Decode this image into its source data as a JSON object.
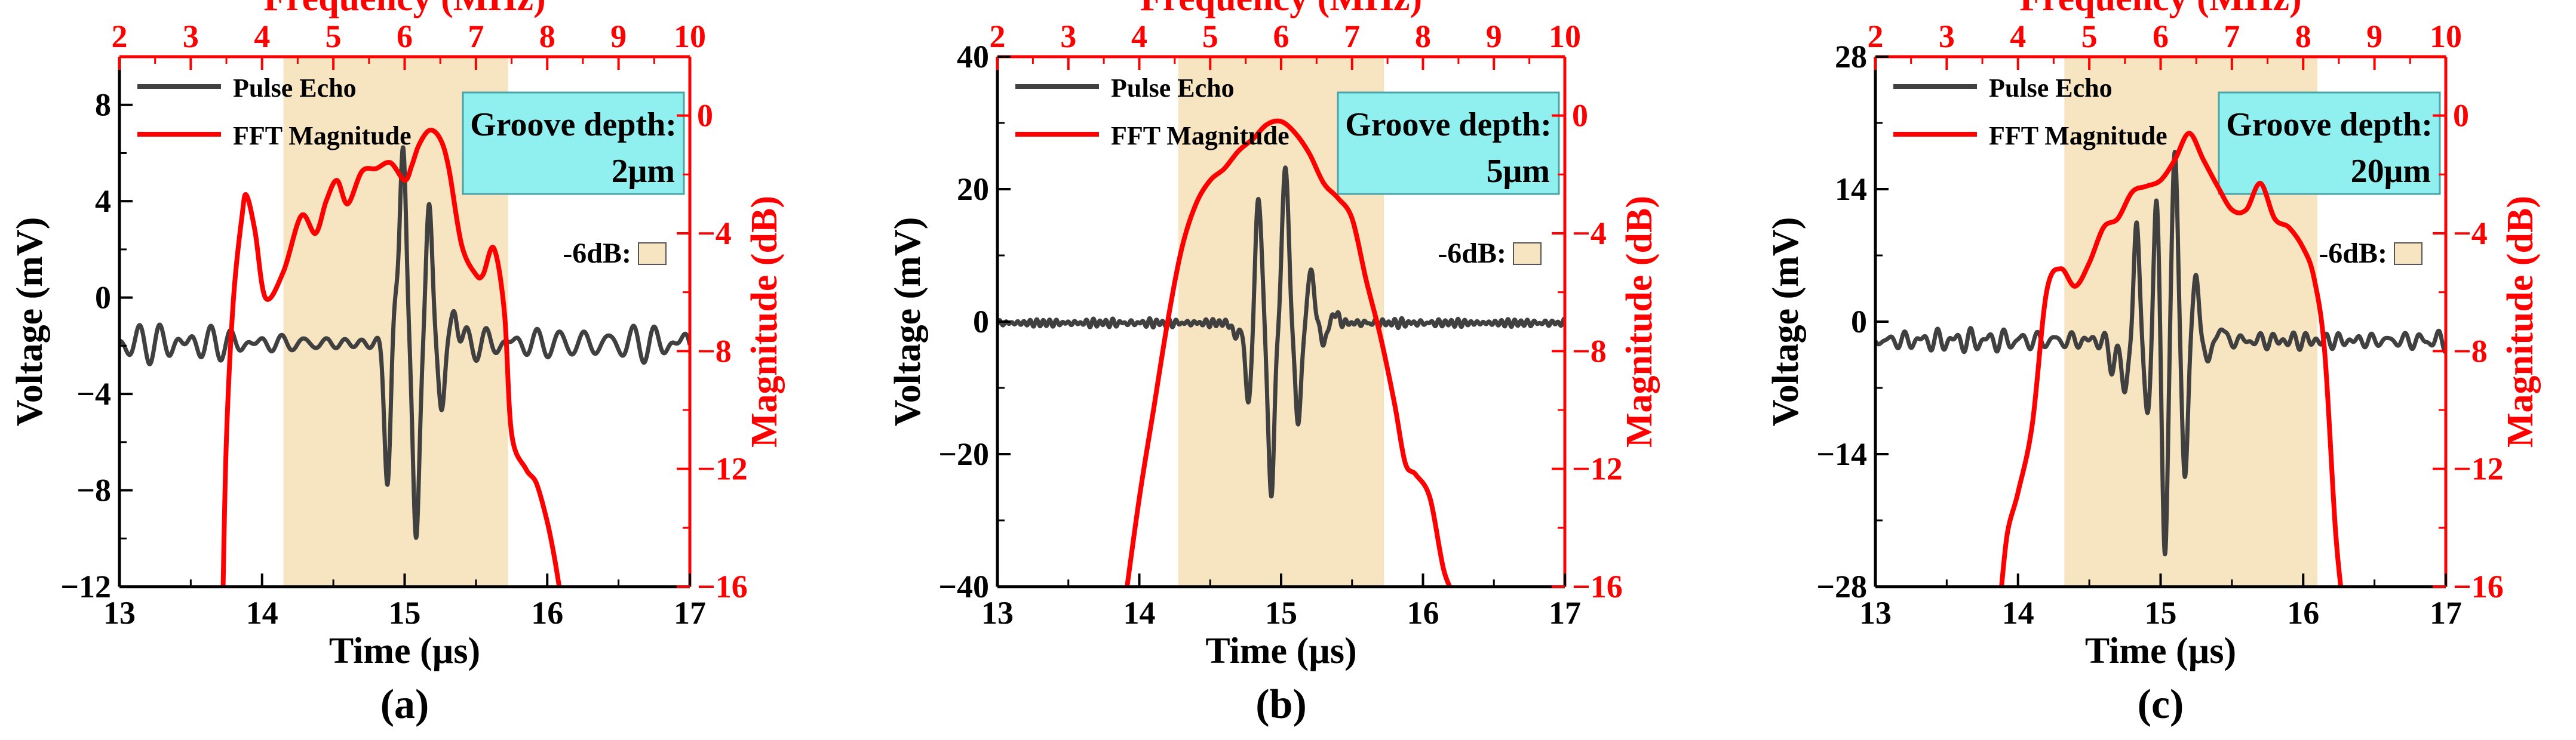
{
  "chart_data": [
    {
      "type": "line",
      "panel_label": "(a)",
      "top_axis": {
        "label": "Frequency (MHz)",
        "range": [
          2,
          10
        ],
        "ticks": [
          "2",
          "3",
          "4",
          "5",
          "6",
          "7",
          "8",
          "9",
          "10"
        ],
        "color": "#ff0000"
      },
      "bottom_axis": {
        "label": "Time (µs)",
        "range": [
          13,
          17
        ],
        "ticks": [
          "13",
          "14",
          "15",
          "16",
          "17"
        ]
      },
      "left_axis": {
        "label": "Voltage (mV)",
        "range": [
          -12,
          10
        ],
        "ticks": [
          -12,
          -8,
          -4,
          0,
          4,
          8
        ],
        "tick_labels": [
          "−12",
          "−8",
          "−4",
          "0",
          "4",
          "8"
        ]
      },
      "right_axis": {
        "label": "Magnitude (dB)",
        "range": [
          -16,
          2
        ],
        "ticks": [
          -16,
          -12,
          -8,
          -4,
          0
        ],
        "tick_labels": [
          "−16",
          "−12",
          "−8",
          "−4",
          "0"
        ],
        "color": "#ff0000"
      },
      "band_6db_freq": [
        4.3,
        7.45
      ],
      "band_label": "-6dB:",
      "groove_title": "Groove depth:",
      "groove_value": "2μm",
      "series": [
        {
          "name": "Pulse Echo",
          "axis": "time_voltage",
          "color": "#404040",
          "baseline": -1.9,
          "noise": 1.0,
          "noise_period": 0.13,
          "seed": 11,
          "pulse": [
            {
              "t": 14.93,
              "a": 1.4
            },
            {
              "t": 14.88,
              "a": -5.6
            },
            {
              "t": 14.99,
              "a": 8.5
            },
            {
              "t": 15.08,
              "a": -8.6
            },
            {
              "t": 15.17,
              "a": 5.8
            },
            {
              "t": 15.26,
              "a": -2.6
            },
            {
              "t": 15.35,
              "a": 1.6
            }
          ],
          "pulse_sigma": 0.022
        },
        {
          "name": "FFT Magnitude",
          "axis": "freq_db",
          "color": "#ff0000",
          "x": [
            3.45,
            3.5,
            3.6,
            3.72,
            3.78,
            3.9,
            4.05,
            4.3,
            4.55,
            4.75,
            4.9,
            5.05,
            5.2,
            5.4,
            5.6,
            5.8,
            6.0,
            6.1,
            6.2,
            6.35,
            6.5,
            6.62,
            6.8,
            7.0,
            7.1,
            7.25,
            7.4,
            7.5,
            7.7,
            7.85,
            8.0,
            8.1,
            8.2
          ],
          "y": [
            -16.5,
            -11,
            -6.2,
            -3.4,
            -2.7,
            -3.9,
            -6.2,
            -5.3,
            -3.4,
            -4.0,
            -2.9,
            -2.2,
            -3.0,
            -1.9,
            -1.8,
            -1.6,
            -2.2,
            -1.7,
            -1.0,
            -0.5,
            -0.8,
            -1.8,
            -4.4,
            -5.4,
            -5.4,
            -4.5,
            -6.7,
            -10.8,
            -12.0,
            -12.5,
            -13.8,
            -15.0,
            -16.5
          ]
        }
      ]
    },
    {
      "type": "line",
      "panel_label": "(b)",
      "top_axis": {
        "label": "Frequency (MHz)",
        "range": [
          2,
          10
        ],
        "ticks": [
          "2",
          "3",
          "4",
          "5",
          "6",
          "7",
          "8",
          "9",
          "10"
        ],
        "color": "#ff0000"
      },
      "bottom_axis": {
        "label": "Time (µs)",
        "range": [
          13,
          17
        ],
        "ticks": [
          "13",
          "14",
          "15",
          "16",
          "17"
        ]
      },
      "left_axis": {
        "label": "Voltage (mV)",
        "range": [
          -40,
          40
        ],
        "ticks": [
          -40,
          -20,
          0,
          20,
          40
        ],
        "tick_labels": [
          "−40",
          "−20",
          "0",
          "20",
          "40"
        ]
      },
      "right_axis": {
        "label": "Magnitude (dB)",
        "range": [
          -16,
          2
        ],
        "ticks": [
          -16,
          -12,
          -8,
          -4,
          0
        ],
        "tick_labels": [
          "−16",
          "−12",
          "−8",
          "−4",
          "0"
        ],
        "color": "#ff0000"
      },
      "band_6db_freq": [
        4.55,
        7.45
      ],
      "band_label": "-6dB:",
      "groove_title": "Groove depth:",
      "groove_value": "5μm",
      "series": [
        {
          "name": "Pulse Echo",
          "axis": "time_voltage",
          "color": "#404040",
          "baseline": -0.2,
          "noise": 0.9,
          "noise_period": 0.05,
          "seed": 23,
          "pulse": [
            {
              "t": 14.68,
              "a": -2.0
            },
            {
              "t": 14.77,
              "a": -12.0
            },
            {
              "t": 14.84,
              "a": 19.0
            },
            {
              "t": 14.93,
              "a": -26.0
            },
            {
              "t": 15.03,
              "a": 24.0
            },
            {
              "t": 15.12,
              "a": -15.0
            },
            {
              "t": 15.21,
              "a": 8.0
            },
            {
              "t": 15.3,
              "a": -3.0
            },
            {
              "t": 15.38,
              "a": 1.5
            }
          ],
          "pulse_sigma": 0.022
        },
        {
          "name": "FFT Magnitude",
          "axis": "freq_db",
          "color": "#ff0000",
          "x": [
            3.8,
            4.0,
            4.2,
            4.4,
            4.6,
            4.8,
            5.0,
            5.2,
            5.4,
            5.6,
            5.8,
            6.0,
            6.2,
            6.4,
            6.6,
            6.8,
            7.0,
            7.2,
            7.4,
            7.6,
            7.75,
            7.9,
            8.1,
            8.3,
            8.5
          ],
          "y": [
            -16.5,
            -13.0,
            -10.0,
            -7.0,
            -4.5,
            -3.0,
            -2.2,
            -1.8,
            -1.2,
            -0.8,
            -0.3,
            -0.2,
            -0.6,
            -1.3,
            -2.3,
            -2.8,
            -3.5,
            -5.6,
            -7.5,
            -9.8,
            -11.8,
            -12.2,
            -13.0,
            -15.5,
            -16.5
          ]
        }
      ]
    },
    {
      "type": "line",
      "panel_label": "(c)",
      "top_axis": {
        "label": "Frequency (MHz)",
        "range": [
          2,
          10
        ],
        "ticks": [
          "2",
          "3",
          "4",
          "5",
          "6",
          "7",
          "8",
          "9",
          "10"
        ],
        "color": "#ff0000"
      },
      "bottom_axis": {
        "label": "Time (µs)",
        "range": [
          13,
          17
        ],
        "ticks": [
          "13",
          "14",
          "15",
          "16",
          "17"
        ]
      },
      "left_axis": {
        "label": "Voltage (mV)",
        "range": [
          -28,
          28
        ],
        "ticks": [
          -28,
          -14,
          0,
          14,
          28
        ],
        "tick_labels": [
          "−28",
          "−14",
          "0",
          "14",
          "28"
        ]
      },
      "right_axis": {
        "label": "Magnitude (dB)",
        "range": [
          -16,
          2
        ],
        "ticks": [
          -16,
          -12,
          -8,
          -4,
          0
        ],
        "tick_labels": [
          "−16",
          "−12",
          "−8",
          "−4",
          "0"
        ],
        "color": "#ff0000"
      },
      "band_6db_freq": [
        4.65,
        8.2
      ],
      "band_label": "-6dB:",
      "groove_title": "Groove depth:",
      "groove_value": "20μm",
      "series": [
        {
          "name": "Pulse Echo",
          "axis": "time_voltage",
          "color": "#404040",
          "baseline": -2.0,
          "noise": 1.2,
          "noise_period": 0.1,
          "seed": 37,
          "pulse": [
            {
              "t": 14.66,
              "a": -3.0
            },
            {
              "t": 14.75,
              "a": -6.0
            },
            {
              "t": 14.83,
              "a": 12.0
            },
            {
              "t": 14.91,
              "a": -8.0
            },
            {
              "t": 14.97,
              "a": 15.0
            },
            {
              "t": 15.03,
              "a": -22.0
            },
            {
              "t": 15.1,
              "a": 20.0
            },
            {
              "t": 15.17,
              "a": -14.0
            },
            {
              "t": 15.25,
              "a": 7.0
            },
            {
              "t": 15.33,
              "a": -2.5
            },
            {
              "t": 15.42,
              "a": 1.5
            }
          ],
          "pulse_sigma": 0.02
        },
        {
          "name": "FFT Magnitude",
          "axis": "freq_db",
          "color": "#ff0000",
          "x": [
            3.75,
            3.85,
            4.0,
            4.2,
            4.4,
            4.6,
            4.8,
            5.0,
            5.2,
            5.4,
            5.6,
            5.8,
            6.0,
            6.2,
            6.4,
            6.6,
            6.8,
            7.0,
            7.2,
            7.4,
            7.6,
            7.8,
            8.0,
            8.15,
            8.3,
            8.45,
            8.55
          ],
          "y": [
            -16.5,
            -14.2,
            -12.8,
            -10.5,
            -6.0,
            -5.2,
            -5.8,
            -5.0,
            -3.8,
            -3.5,
            -2.6,
            -2.4,
            -2.2,
            -1.5,
            -0.6,
            -1.5,
            -2.4,
            -3.2,
            -3.2,
            -2.3,
            -3.5,
            -3.8,
            -4.5,
            -5.5,
            -8.0,
            -14.0,
            -16.5
          ]
        }
      ]
    }
  ]
}
